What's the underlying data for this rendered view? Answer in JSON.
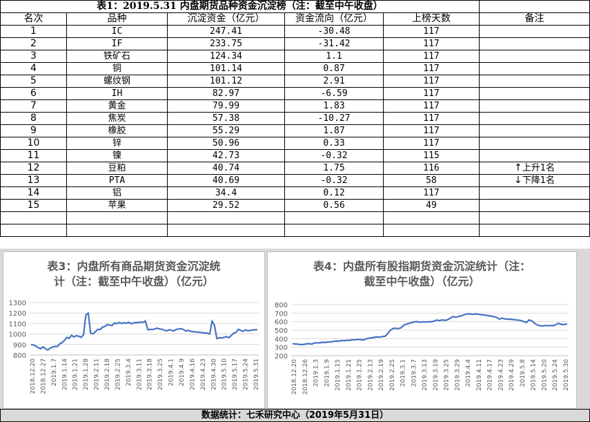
{
  "table": {
    "title": "表1：2019.5.31 内盘期货品种资金沉淀榜（注：截至中午收盘）",
    "headers": [
      "名次",
      "品种",
      "沉淀资金（亿元）",
      "资金流向（亿元）",
      "上榜天数",
      "备注"
    ],
    "rows": [
      {
        "rank": "1",
        "name": "IC",
        "capital": "247.41",
        "flow": "-30.48",
        "days": "117",
        "note": ""
      },
      {
        "rank": "2",
        "name": "IF",
        "capital": "233.75",
        "flow": "-31.42",
        "days": "117",
        "note": ""
      },
      {
        "rank": "3",
        "name": "铁矿石",
        "capital": "124.34",
        "flow": "1.1",
        "days": "117",
        "note": ""
      },
      {
        "rank": "4",
        "name": "铜",
        "capital": "101.14",
        "flow": "0.87",
        "days": "117",
        "note": ""
      },
      {
        "rank": "5",
        "name": "螺纹钢",
        "capital": "101.12",
        "flow": "2.91",
        "days": "117",
        "note": ""
      },
      {
        "rank": "6",
        "name": "IH",
        "capital": "82.97",
        "flow": "-6.59",
        "days": "117",
        "note": ""
      },
      {
        "rank": "7",
        "name": "黄金",
        "capital": "79.99",
        "flow": "1.83",
        "days": "117",
        "note": ""
      },
      {
        "rank": "8",
        "name": "焦炭",
        "capital": "57.38",
        "flow": "-10.27",
        "days": "117",
        "note": ""
      },
      {
        "rank": "9",
        "name": "橡胶",
        "capital": "55.29",
        "flow": "1.87",
        "days": "117",
        "note": ""
      },
      {
        "rank": "10",
        "name": "锌",
        "capital": "50.96",
        "flow": "0.33",
        "days": "117",
        "note": ""
      },
      {
        "rank": "11",
        "name": "镍",
        "capital": "42.73",
        "flow": "-0.32",
        "days": "115",
        "note": ""
      },
      {
        "rank": "12",
        "name": "豆粕",
        "capital": "40.74",
        "flow": "1.75",
        "days": "116",
        "note": "上升1名",
        "note_icon": "up-arrow"
      },
      {
        "rank": "13",
        "name": "PTA",
        "capital": "40.69",
        "flow": "-0.32",
        "days": "58",
        "note": "下降1名",
        "note_icon": "down-arrow"
      },
      {
        "rank": "14",
        "name": "铝",
        "capital": "34.4",
        "flow": "0.12",
        "days": "117",
        "note": ""
      },
      {
        "rank": "15",
        "name": "苹果",
        "capital": "29.52",
        "flow": "0.56",
        "days": "49",
        "note": ""
      }
    ]
  },
  "chart_data": [
    {
      "type": "line",
      "title": "表3：内盘所有商品期货资金沉淀统计（注：截至中午收盘）（亿元）",
      "title_lines": [
        "表3：内盘所有商品期货资金沉淀统",
        "计（注：截至中午收盘）（亿元）"
      ],
      "ylim": [
        800,
        1300
      ],
      "yticks": [
        "800",
        "900",
        "1000",
        "1100",
        "1200",
        "1300"
      ],
      "ytick_values": [
        800,
        900,
        1000,
        1100,
        1200,
        1300
      ],
      "xticks": [
        "2018.12.20",
        "2018.12.27",
        "2019.1.7",
        "2019.1.14",
        "2019.1.21",
        "2019.1.28",
        "2019.2.11",
        "2019.2.18",
        "2019.2.25",
        "2019.3.4",
        "2019.3.11",
        "2019.3.18",
        "2019.3.25",
        "2019.4.1",
        "2019.4.9",
        "2019.4.16",
        "2019.4.23",
        "2019.4.30",
        "2019.5.10",
        "2019.5.17",
        "2019.5.24",
        "2019.5.31"
      ],
      "grid": true,
      "color": "#4472c4",
      "values": [
        900,
        895,
        885,
        870,
        860,
        878,
        860,
        848,
        865,
        875,
        882,
        880,
        905,
        918,
        938,
        968,
        958,
        988,
        972,
        985,
        978,
        968,
        992,
        1180,
        1200,
        1008,
        1002,
        1022,
        1045,
        1042,
        1065,
        1072,
        1090,
        1085,
        1080,
        1105,
        1098,
        1110,
        1100,
        1108,
        1102,
        1112,
        1098,
        1105,
        1110,
        1108,
        1115,
        1110,
        1125,
        1040,
        1045,
        1042,
        1050,
        1055,
        1048,
        1045,
        1035,
        1030,
        1040,
        1035,
        1030,
        1045,
        1048,
        1052,
        1042,
        1028,
        1035,
        1025,
        1022,
        1020,
        1018,
        1015,
        1012,
        1010,
        1008,
        1000,
        1125,
        1080,
        955,
        965,
        962,
        968,
        975,
        965,
        985,
        1008,
        1015,
        1045,
        1035,
        1025,
        1040,
        1030,
        1035,
        1038,
        1040,
        1042
      ]
    },
    {
      "type": "line",
      "title": "表4：内盘所有股指期货资金沉淀统计（注：截至中午收盘）（亿元）",
      "title_lines": [
        "表4：内盘所有股指期货资金沉淀统计（注：",
        "截至中午收盘）（亿元）"
      ],
      "ylim": [
        200,
        800
      ],
      "yticks": [
        "200",
        "300",
        "400",
        "500",
        "600",
        "700",
        "800"
      ],
      "ytick_values": [
        200,
        300,
        400,
        500,
        600,
        700,
        800
      ],
      "xticks": [
        "2018.12.20",
        "2018.12.26",
        "2019.1.3",
        "2019.1.9",
        "2019.1.15",
        "2019.1.21",
        "2019.1.25",
        "2019.2.13",
        "2019.2.19",
        "2019.2.25",
        "2019.3.1",
        "2019.3.7",
        "2019.3.13",
        "2019.3.19",
        "2019.3.25",
        "2019.3.29",
        "2019.4.4",
        "2019.4.11",
        "2019.4.17",
        "2019.4.23",
        "2019.4.29",
        "2019.5.8",
        "2019.5.14",
        "2019.5.20",
        "2019.5.24",
        "2019.5.30"
      ],
      "grid": true,
      "color": "#4472c4",
      "values": [
        340,
        338,
        335,
        330,
        332,
        338,
        342,
        335,
        348,
        352,
        350,
        358,
        355,
        362,
        360,
        368,
        372,
        370,
        378,
        375,
        382,
        380,
        388,
        385,
        392,
        390,
        385,
        398,
        405,
        410,
        415,
        420,
        418,
        425,
        428,
        460,
        500,
        520,
        522,
        518,
        530,
        560,
        572,
        580,
        590,
        598,
        600,
        592,
        598,
        595,
        600,
        598,
        605,
        618,
        612,
        620,
        615,
        622,
        640,
        660,
        652,
        660,
        668,
        680,
        688,
        692,
        685,
        690,
        688,
        682,
        680,
        675,
        670,
        665,
        660,
        650,
        630,
        640,
        632,
        628,
        630,
        625,
        620,
        618,
        612,
        600,
        590,
        620,
        608,
        582,
        560,
        552,
        548,
        555,
        550,
        555,
        552,
        570,
        580,
        565,
        568,
        572
      ]
    }
  ],
  "footer": "数据统计：七禾研究中心（2019年5月31日）"
}
